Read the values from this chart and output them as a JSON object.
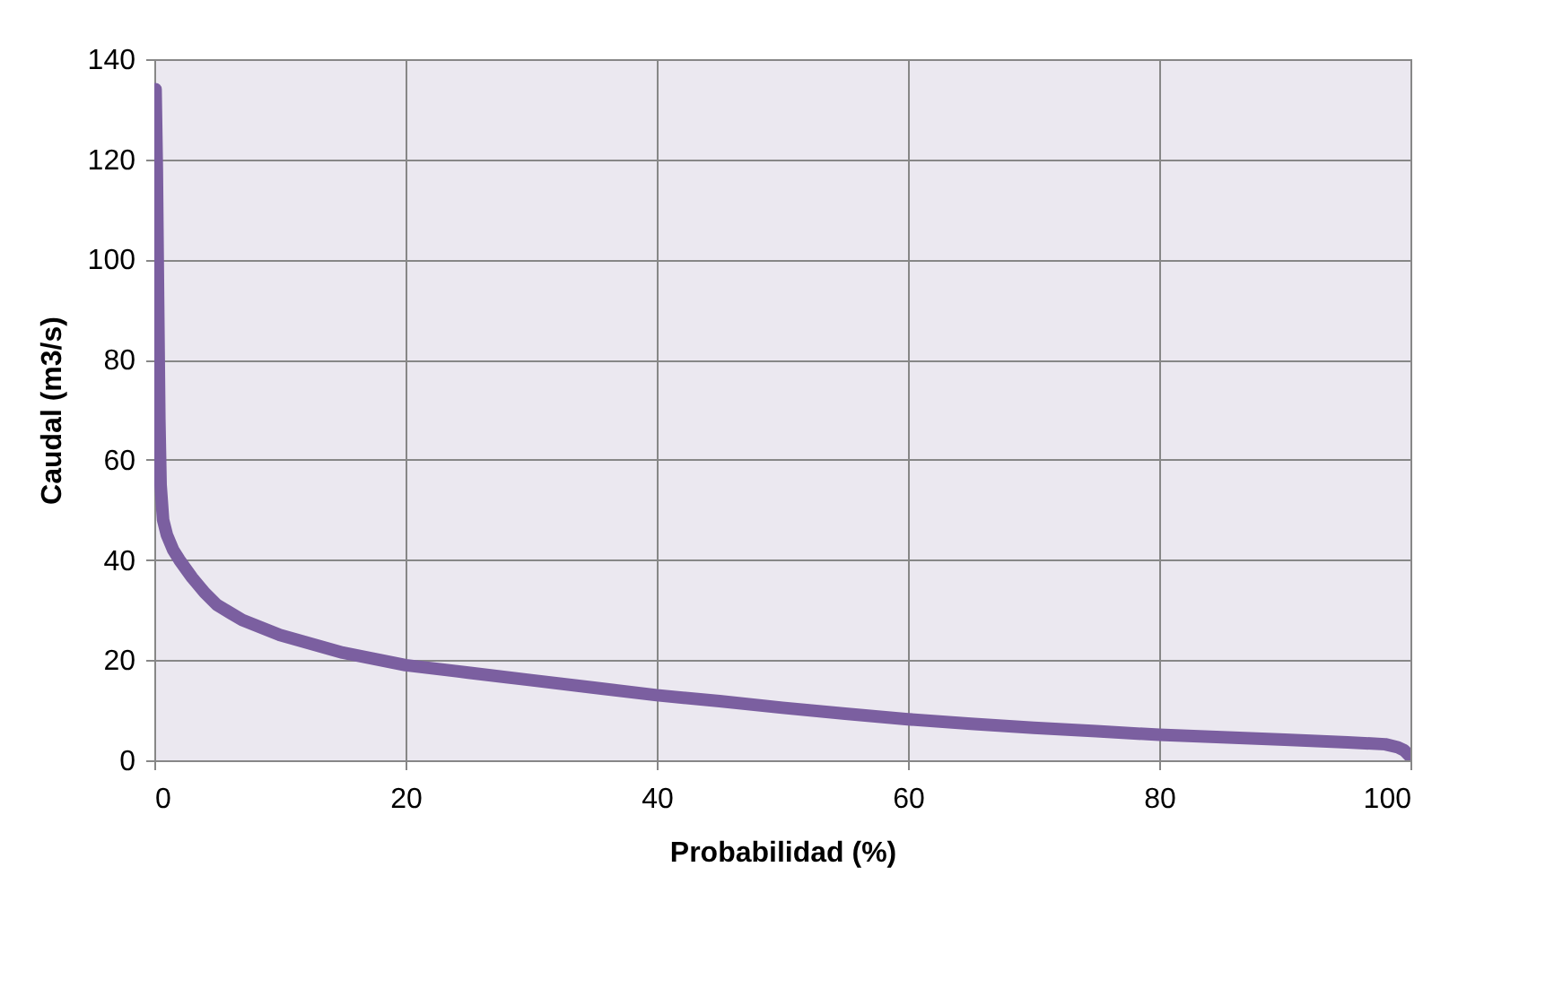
{
  "chart_data": {
    "type": "line",
    "xlabel": "Probabilidad (%)",
    "ylabel": "Caudal (m3/s)",
    "x": [
      0.1,
      0.2,
      0.3,
      0.4,
      0.5,
      0.7,
      1,
      1.5,
      2,
      3,
      4,
      5,
      7,
      10,
      15,
      20,
      25,
      30,
      35,
      40,
      45,
      50,
      55,
      60,
      65,
      70,
      75,
      80,
      85,
      90,
      95,
      98,
      99,
      99.5,
      100
    ],
    "series": [
      {
        "color": "#7b5fa0",
        "values": [
          134,
          118,
          92,
          68,
          55,
          48,
          45,
          42,
          40,
          36.5,
          33.5,
          31,
          28,
          25,
          21.5,
          19,
          17.5,
          16,
          14.5,
          13,
          11.8,
          10.5,
          9.3,
          8.2,
          7.3,
          6.5,
          5.8,
          5.1,
          4.6,
          4.1,
          3.6,
          3.2,
          2.6,
          2,
          0.7
        ]
      }
    ],
    "xlim": [
      0,
      100
    ],
    "xticks": [
      0,
      20,
      40,
      60,
      80,
      100
    ],
    "ylim": [
      0,
      140
    ],
    "yticks": [
      0,
      20,
      40,
      60,
      80,
      100,
      120,
      140
    ],
    "grid": true,
    "legend": false,
    "line_style": "solid"
  }
}
